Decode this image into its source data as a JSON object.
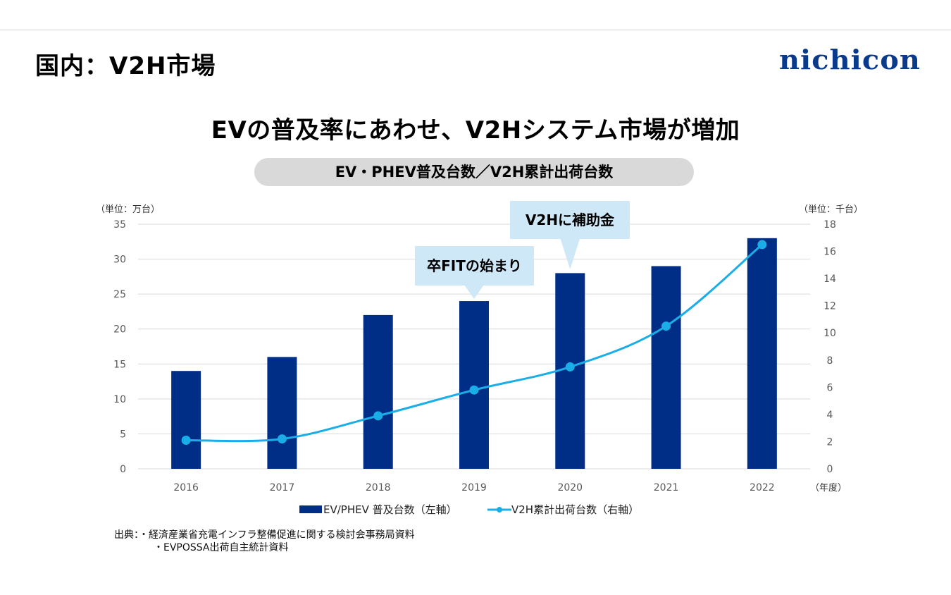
{
  "header": {
    "title": "国内：V2H市場",
    "logo_text": "nichicon",
    "logo_color": "#0a3a8c"
  },
  "headline": "EVの普及率にあわせ、V2Hシステム市場が増加",
  "chart_data": {
    "type": "bar",
    "title": "EV・PHEV普及台数／V2H累計出荷台数",
    "categories": [
      "2016",
      "2017",
      "2018",
      "2019",
      "2020",
      "2021",
      "2022"
    ],
    "xlabel": "（年度）",
    "ylabel_left": "（単位：万台）",
    "ylabel_right": "（単位：千台）",
    "ylim_left": [
      0,
      35
    ],
    "ylim_right": [
      0,
      18
    ],
    "yticks_left": [
      "0",
      "5",
      "10",
      "15",
      "20",
      "25",
      "30",
      "35"
    ],
    "yticks_right": [
      "0",
      "2",
      "4",
      "6",
      "8",
      "10",
      "12",
      "14",
      "16",
      "18"
    ],
    "grid": true,
    "legend_position": "bottom",
    "series": [
      {
        "name": "EV/PHEV 普及台数（左軸）",
        "type": "bar",
        "axis": "left",
        "color": "#002e87",
        "values": [
          14,
          16,
          22,
          24,
          28,
          29,
          33
        ]
      },
      {
        "name": "V2H累計出荷台数（右軸）",
        "type": "line",
        "axis": "right",
        "color": "#1aaee8",
        "values": [
          2.1,
          2.2,
          3.9,
          5.8,
          7.5,
          10.5,
          16.5
        ]
      }
    ],
    "annotations": [
      {
        "text": "卒FITの始まり",
        "category": "2019"
      },
      {
        "text": "V2Hに補助金",
        "category": "2020"
      }
    ]
  },
  "source": {
    "label": "出典：",
    "lines": [
      "・経済産業省充電インフラ整備促進に関する検討会事務局資料",
      "・EVPOSSA出荷自主統計資料"
    ]
  }
}
